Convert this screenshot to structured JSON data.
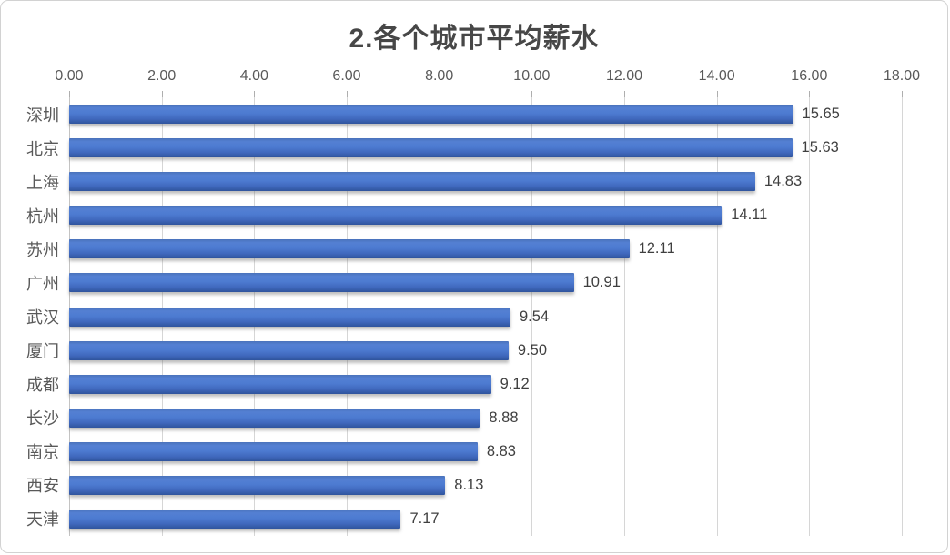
{
  "chart": {
    "title": "2.各个城市平均薪水"
  },
  "chart_data": {
    "type": "bar",
    "orientation": "horizontal",
    "title": "2.各个城市平均薪水",
    "categories": [
      "深圳",
      "北京",
      "上海",
      "杭州",
      "苏州",
      "广州",
      "武汉",
      "厦门",
      "成都",
      "长沙",
      "南京",
      "西安",
      "天津"
    ],
    "values": [
      15.65,
      15.63,
      14.83,
      14.11,
      12.11,
      10.91,
      9.54,
      9.5,
      9.12,
      8.88,
      8.83,
      8.13,
      7.17
    ],
    "value_labels": [
      "15.65",
      "15.63",
      "14.83",
      "14.11",
      "12.11",
      "10.91",
      "9.54",
      "9.50",
      "9.12",
      "8.88",
      "8.83",
      "8.13",
      "7.17"
    ],
    "x_ticks": [
      "0.00",
      "2.00",
      "4.00",
      "6.00",
      "8.00",
      "10.00",
      "12.00",
      "14.00",
      "16.00",
      "18.00"
    ],
    "x_tick_values": [
      0,
      2,
      4,
      6,
      8,
      10,
      12,
      14,
      16,
      18
    ],
    "xlim": [
      0,
      18
    ],
    "xlabel": "",
    "ylabel": "",
    "grid": true,
    "legend_position": "none",
    "bar_color": "#4472C4",
    "gridline_color": "#d6d6d6",
    "title_color": "#474747",
    "label_color": "#595959"
  }
}
